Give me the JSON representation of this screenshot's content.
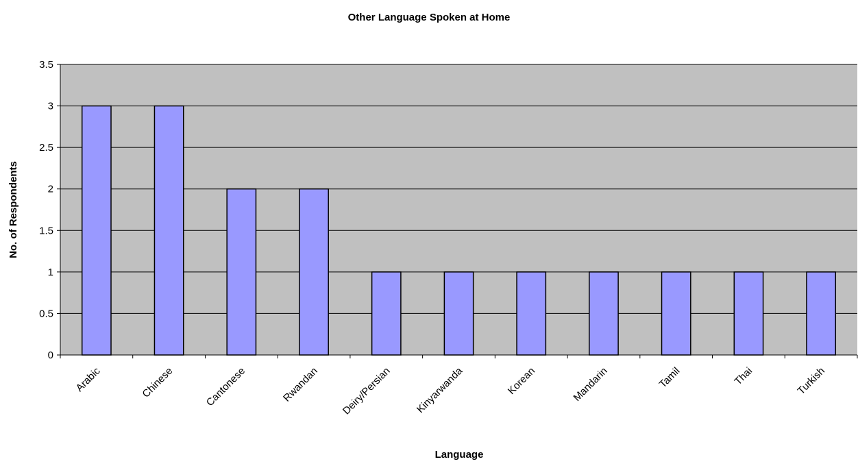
{
  "colors": {
    "plot_background": "#C0C0C0",
    "bar_fill": "#9999FF",
    "bar_stroke": "#000000",
    "gridline": "#000000"
  },
  "chart_data": {
    "type": "bar",
    "title": "Other Language Spoken at Home",
    "xlabel": "Language",
    "ylabel": "No. of Respondents",
    "categories": [
      "Arabic",
      "Chinese",
      "Cantonese",
      "Rwandan",
      "Deiry/Persian",
      "Kinyarwanda",
      "Korean",
      "Mandarin",
      "Tamil",
      "Thai",
      "Turkish"
    ],
    "values": [
      3,
      3,
      2,
      2,
      1,
      1,
      1,
      1,
      1,
      1,
      1
    ],
    "ylim": [
      0,
      3.5
    ],
    "yticks": [
      "0",
      "0.5",
      "1",
      "1.5",
      "2",
      "2.5",
      "3",
      "3.5"
    ],
    "grid": true,
    "legend": "none"
  }
}
